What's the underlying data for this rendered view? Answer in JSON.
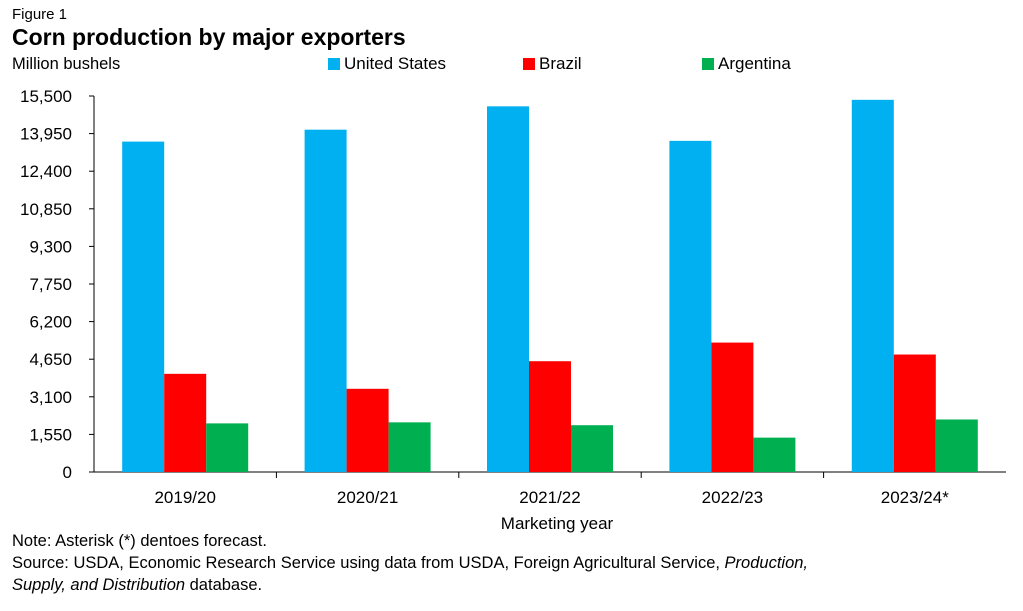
{
  "figure_label": "Figure 1",
  "chart_data": {
    "type": "bar",
    "title": "Corn production by major exporters",
    "ylabel": "Million bushels",
    "xlabel": "Marketing year",
    "categories": [
      "2019/20",
      "2020/21",
      "2021/22",
      "2022/23",
      "2023/24*"
    ],
    "yticks": [
      0,
      1550,
      3100,
      4650,
      6200,
      7750,
      9300,
      10850,
      12400,
      13950,
      15500
    ],
    "ytick_labels": [
      "0",
      "1,550",
      "3,100",
      "4,650",
      "6,200",
      "7,750",
      "9,300",
      "10,850",
      "12,400",
      "13,950",
      "15,500"
    ],
    "ylim": [
      0,
      15500
    ],
    "grid": false,
    "legend_position": "top",
    "series": [
      {
        "name": "United States",
        "color": "#00B0F0",
        "values": [
          13620,
          14111,
          15074,
          13651,
          15342
        ]
      },
      {
        "name": "Brazil",
        "color": "#FF0000",
        "values": [
          4047,
          3430,
          4567,
          5335,
          4843
        ]
      },
      {
        "name": "Argentina",
        "color": "#00B050",
        "values": [
          2004,
          2047,
          1929,
          1417,
          2165
        ]
      }
    ]
  },
  "notes": {
    "note": "Note: Asterisk (*) dentoes forecast.",
    "source_prefix": "Source: USDA, Economic Research Service using data from USDA, Foreign Agricultural Service, ",
    "source_italic_1": "Production,",
    "source_italic_2": "Supply, and Distribution",
    "source_suffix": " database."
  }
}
